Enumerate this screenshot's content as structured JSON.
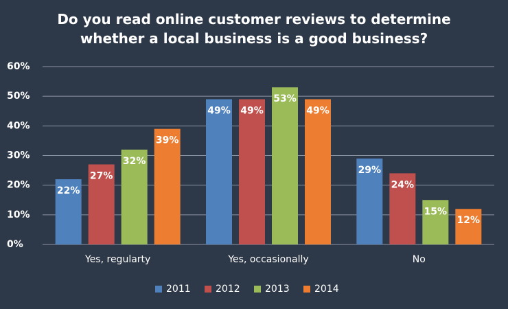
{
  "chart_data": {
    "type": "bar",
    "title": "Do you read online customer reviews to determine whether a local business is a good business?",
    "categories": [
      "Yes, regularty",
      "Yes, occasionally",
      "No"
    ],
    "series": [
      {
        "name": "2011",
        "color": "#4f81bd",
        "values": [
          22,
          49,
          29
        ],
        "value_labels": [
          "22%",
          "49%",
          "29%"
        ]
      },
      {
        "name": "2012",
        "color": "#c0504d",
        "values": [
          27,
          49,
          24
        ],
        "value_labels": [
          "27%",
          "49%",
          "24%"
        ]
      },
      {
        "name": "2013",
        "color": "#9bbb59",
        "values": [
          32,
          53,
          15
        ],
        "value_labels": [
          "32%",
          "53%",
          "15%"
        ]
      },
      {
        "name": "2014",
        "color": "#ed7d31",
        "values": [
          39,
          49,
          12
        ],
        "value_labels": [
          "39%",
          "49%",
          "12%"
        ]
      }
    ],
    "ylim": [
      0,
      60
    ],
    "yticks": [
      {
        "value": 0,
        "label": "0%"
      },
      {
        "value": 10,
        "label": "10%"
      },
      {
        "value": 20,
        "label": "20%"
      },
      {
        "value": 30,
        "label": "30%"
      },
      {
        "value": 40,
        "label": "40%"
      },
      {
        "value": 50,
        "label": "50%"
      },
      {
        "value": 60,
        "label": "60%"
      }
    ],
    "grid": true,
    "legend": "bottom"
  }
}
